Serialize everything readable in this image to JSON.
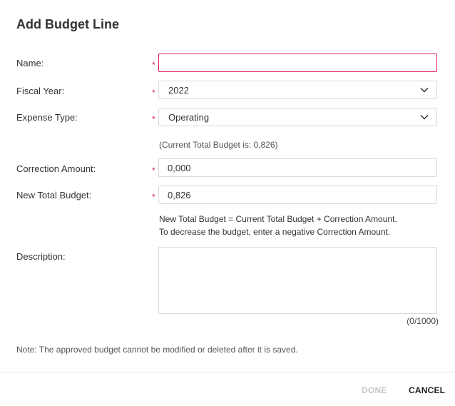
{
  "dialog": {
    "title": "Add Budget Line"
  },
  "form": {
    "name": {
      "label": "Name:",
      "required_mark": "*",
      "value": ""
    },
    "fiscal_year": {
      "label": "Fiscal Year:",
      "required_mark": "*",
      "value": "2022",
      "icon": "chevron-down-icon"
    },
    "expense_type": {
      "label": "Expense Type:",
      "required_mark": "*",
      "value": "Operating",
      "icon": "chevron-down-icon"
    },
    "current_total_hint": "(Current Total Budget is: 0,826)",
    "correction_amount": {
      "label": "Correction Amount:",
      "required_mark": "*",
      "value": "0,000"
    },
    "new_total_budget": {
      "label": "New Total Budget:",
      "required_mark": "*",
      "value": "0,826"
    },
    "formula_hint_line1": "New Total Budget = Current Total Budget + Correction Amount.",
    "formula_hint_line2": "To decrease the budget, enter a negative Correction Amount.",
    "description": {
      "label": "Description:",
      "value": "",
      "counter": "(0/1000)"
    },
    "note": "Note: The approved budget cannot be modified or deleted after it is saved."
  },
  "footer": {
    "done_label": "DONE",
    "cancel_label": "CANCEL"
  },
  "colors": {
    "required": "#e0245e",
    "focus_border": "#e0245e",
    "disabled_text": "#c8c8c8"
  }
}
